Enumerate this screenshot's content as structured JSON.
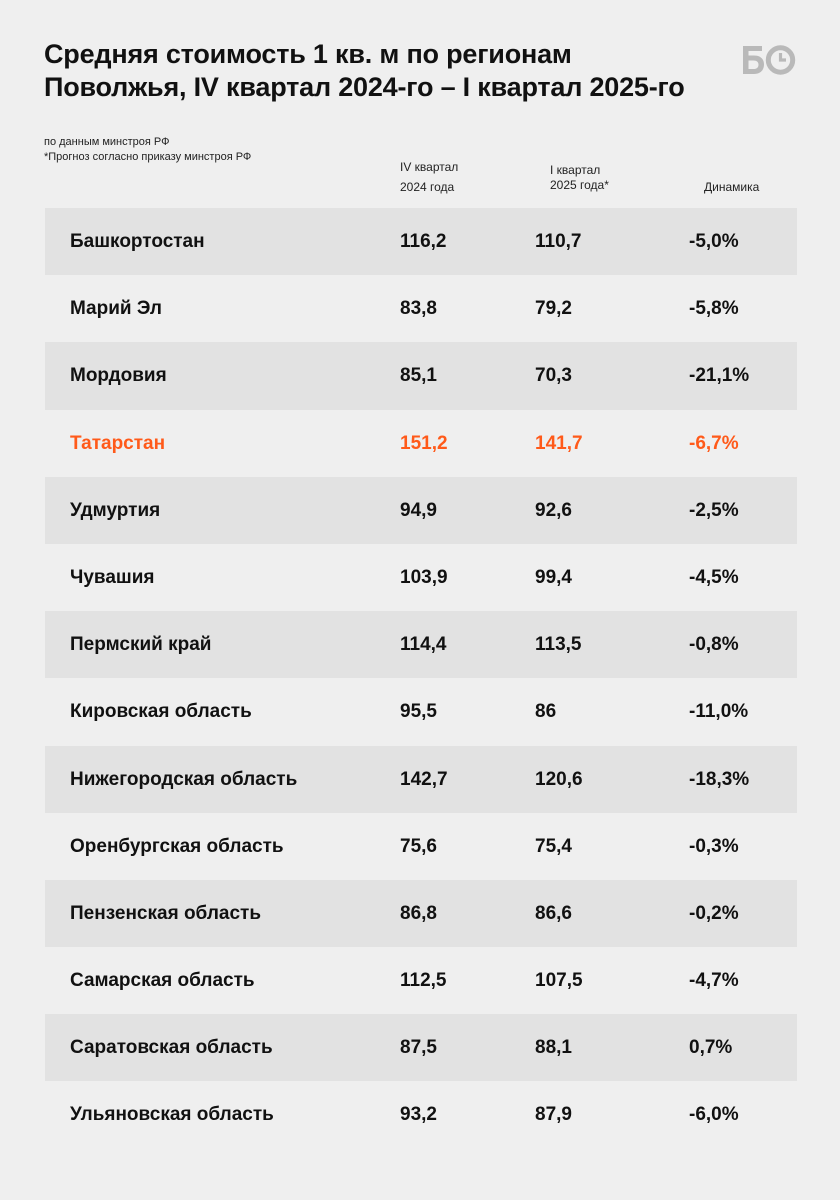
{
  "title": {
    "line1": "Средняя стоимость 1 кв. м по регионам",
    "line2": "Поволжья, IV квартал 2024-го – I квартал 2025-го"
  },
  "logo": {
    "text": "БО"
  },
  "notes": {
    "source": "по данным минстроя РФ",
    "forecast": "*Прогноз согласно приказу минстроя РФ"
  },
  "columns": {
    "q4_line1": "IV квартал",
    "q4_line2": "2024 года",
    "q1_line1": "I квартал",
    "q1_line2": "2025 года*",
    "dynamics": "Динамика"
  },
  "accent_color": "#ff5a1a",
  "rows": [
    {
      "region": "Башкортостан",
      "q4": "116,2",
      "q1": "110,7",
      "dynamics": "-5,0%"
    },
    {
      "region": "Марий Эл",
      "q4": "83,8",
      "q1": "79,2",
      "dynamics": "-5,8%"
    },
    {
      "region": "Мордовия",
      "q4": "85,1",
      "q1": "70,3",
      "dynamics": "-21,1%"
    },
    {
      "region": "Татарстан",
      "q4": "151,2",
      "q1": "141,7",
      "dynamics": "-6,7%"
    },
    {
      "region": "Удмуртия",
      "q4": "94,9",
      "q1": "92,6",
      "dynamics": "-2,5%"
    },
    {
      "region": "Чувашия",
      "q4": "103,9",
      "q1": "99,4",
      "dynamics": "-4,5%"
    },
    {
      "region": "Пермский край",
      "q4": "114,4",
      "q1": "113,5",
      "dynamics": "-0,8%"
    },
    {
      "region": "Кировская область",
      "q4": "95,5",
      "q1": "86",
      "dynamics": "-11,0%"
    },
    {
      "region": "Нижегородская область",
      "q4": "142,7",
      "q1": "120,6",
      "dynamics": "-18,3%"
    },
    {
      "region": "Оренбургская область",
      "q4": "75,6",
      "q1": "75,4",
      "dynamics": "-0,3%"
    },
    {
      "region": "Пензенская область",
      "q4": "86,8",
      "q1": "86,6",
      "dynamics": "-0,2%"
    },
    {
      "region": "Самарская область",
      "q4": "112,5",
      "q1": "107,5",
      "dynamics": "-4,7%"
    },
    {
      "region": "Саратовская область",
      "q4": "87,5",
      "q1": "88,1",
      "dynamics": "0,7%"
    },
    {
      "region": "Ульяновская область",
      "q4": "93,2",
      "q1": "87,9",
      "dynamics": "-6,0%"
    }
  ]
}
